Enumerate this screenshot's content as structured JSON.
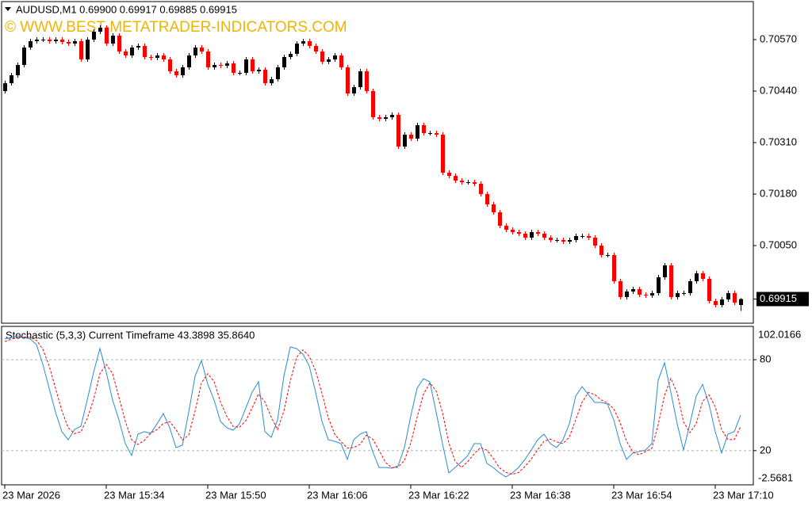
{
  "chart_data": [
    {
      "type": "candlestick",
      "title": "AUDUSD,M1 0.69900 0.69917 0.69885 0.69915",
      "annotation": "© WWW.BEST-METATRADER-INDICATORS.COM",
      "up_color": "#000000",
      "down_color": "#ff0000",
      "xlim": [
        -0.5,
        118
      ],
      "ylim": [
        0.69854,
        0.70666
      ],
      "yticks": [
        {
          "value": 0.7057,
          "label": "0.70570"
        },
        {
          "value": 0.7044,
          "label": "0.70440"
        },
        {
          "value": 0.7031,
          "label": "0.70310"
        },
        {
          "value": 0.7018,
          "label": "0.70180"
        },
        {
          "value": 0.7005,
          "label": "0.70050"
        }
      ],
      "last_price": 0.69915,
      "open": [
        0.7044,
        0.7046,
        0.7048,
        0.70506,
        0.7055,
        0.70566,
        0.7057,
        0.7057,
        0.70566,
        0.7057,
        0.70564,
        0.7056,
        0.70566,
        0.7052,
        0.7057,
        0.7059,
        0.706,
        0.7056,
        0.7058,
        0.7054,
        0.7053,
        0.7055,
        0.70554,
        0.70526,
        0.70524,
        0.7053,
        0.7052,
        0.7049,
        0.7048,
        0.705,
        0.7053,
        0.7055,
        0.7054,
        0.705,
        0.70506,
        0.70504,
        0.7051,
        0.70486,
        0.70486,
        0.7052,
        0.7049,
        0.70494,
        0.7046,
        0.7047,
        0.705,
        0.70526,
        0.70534,
        0.7056,
        0.70566,
        0.70554,
        0.7054,
        0.70514,
        0.7052,
        0.7053,
        0.705,
        0.70434,
        0.7045,
        0.7049,
        0.7044,
        0.70374,
        0.7037,
        0.70374,
        0.7038,
        0.703,
        0.7033,
        0.7032,
        0.70354,
        0.70334,
        0.70334,
        0.7033,
        0.70234,
        0.70226,
        0.70214,
        0.7021,
        0.7021,
        0.70206,
        0.7018,
        0.70154,
        0.70134,
        0.701,
        0.7009,
        0.70084,
        0.7008,
        0.7007,
        0.70084,
        0.7008,
        0.7007,
        0.70064,
        0.70064,
        0.7006,
        0.70064,
        0.70074,
        0.70074,
        0.7007,
        0.7005,
        0.70026,
        0.70026,
        0.6996,
        0.6992,
        0.69934,
        0.6994,
        0.69926,
        0.69924,
        0.6993,
        0.6997,
        0.7,
        0.6992,
        0.6993,
        0.6993,
        0.6996,
        0.6998,
        0.69966,
        0.6991,
        0.699,
        0.69914,
        0.6993,
        0.699
      ],
      "high": [
        0.70466,
        0.70486,
        0.70512,
        0.70556,
        0.70572,
        0.70576,
        0.70576,
        0.70576,
        0.70576,
        0.70576,
        0.7057,
        0.70572,
        0.70572,
        0.70576,
        0.70596,
        0.70606,
        0.70606,
        0.70586,
        0.70586,
        0.70546,
        0.70556,
        0.7056,
        0.7056,
        0.70532,
        0.70536,
        0.70536,
        0.70526,
        0.70496,
        0.70506,
        0.70536,
        0.70556,
        0.70556,
        0.70546,
        0.70512,
        0.70512,
        0.70516,
        0.70516,
        0.70492,
        0.70526,
        0.70526,
        0.705,
        0.705,
        0.70476,
        0.70506,
        0.70532,
        0.7054,
        0.70566,
        0.70572,
        0.70572,
        0.7056,
        0.70546,
        0.70526,
        0.70536,
        0.70536,
        0.70506,
        0.70456,
        0.70496,
        0.70496,
        0.70446,
        0.7038,
        0.7038,
        0.70386,
        0.70386,
        0.70336,
        0.70336,
        0.7036,
        0.7036,
        0.7034,
        0.7034,
        0.70336,
        0.7024,
        0.70232,
        0.7022,
        0.70216,
        0.70216,
        0.70212,
        0.70186,
        0.7016,
        0.7014,
        0.70106,
        0.70096,
        0.7009,
        0.70086,
        0.7009,
        0.7009,
        0.70086,
        0.70076,
        0.7007,
        0.7007,
        0.7007,
        0.7008,
        0.7008,
        0.7008,
        0.70076,
        0.70056,
        0.70032,
        0.70032,
        0.69966,
        0.6994,
        0.69946,
        0.69946,
        0.69932,
        0.69936,
        0.69976,
        0.70006,
        0.70006,
        0.69936,
        0.69936,
        0.69966,
        0.69986,
        0.69986,
        0.69972,
        0.69916,
        0.6992,
        0.69936,
        0.69936,
        0.69917
      ],
      "low": [
        0.70434,
        0.70454,
        0.70474,
        0.705,
        0.70544,
        0.7056,
        0.70564,
        0.7056,
        0.7056,
        0.70558,
        0.70554,
        0.70554,
        0.70514,
        0.70514,
        0.70564,
        0.70584,
        0.70554,
        0.70554,
        0.70534,
        0.70524,
        0.70524,
        0.70544,
        0.7052,
        0.70518,
        0.70518,
        0.70514,
        0.70484,
        0.70474,
        0.70474,
        0.70494,
        0.70524,
        0.70534,
        0.70494,
        0.70494,
        0.70498,
        0.70498,
        0.7048,
        0.7048,
        0.7048,
        0.70484,
        0.70484,
        0.70454,
        0.70454,
        0.70464,
        0.70494,
        0.7052,
        0.70528,
        0.70554,
        0.70548,
        0.70534,
        0.70508,
        0.70508,
        0.70514,
        0.70494,
        0.70428,
        0.70428,
        0.70444,
        0.70434,
        0.70368,
        0.70364,
        0.70364,
        0.70368,
        0.70294,
        0.70294,
        0.70314,
        0.70314,
        0.70328,
        0.70328,
        0.70324,
        0.70228,
        0.7022,
        0.70208,
        0.70204,
        0.70204,
        0.702,
        0.70174,
        0.70148,
        0.70128,
        0.70094,
        0.70084,
        0.70078,
        0.70074,
        0.70064,
        0.70064,
        0.70074,
        0.70064,
        0.70058,
        0.70058,
        0.70054,
        0.70054,
        0.70058,
        0.70068,
        0.70064,
        0.70044,
        0.7002,
        0.7002,
        0.69954,
        0.69914,
        0.69914,
        0.69928,
        0.6992,
        0.69918,
        0.69918,
        0.69924,
        0.69964,
        0.69914,
        0.69914,
        0.69924,
        0.69924,
        0.69954,
        0.6996,
        0.69904,
        0.69894,
        0.69894,
        0.69908,
        0.699,
        0.69885
      ],
      "close": [
        0.7046,
        0.7048,
        0.70506,
        0.7055,
        0.70566,
        0.7057,
        0.7057,
        0.70566,
        0.7057,
        0.70564,
        0.7056,
        0.70566,
        0.7052,
        0.7057,
        0.7059,
        0.706,
        0.7056,
        0.7058,
        0.7054,
        0.7053,
        0.7055,
        0.70554,
        0.70526,
        0.70524,
        0.7053,
        0.7052,
        0.7049,
        0.7048,
        0.705,
        0.7053,
        0.7055,
        0.7054,
        0.705,
        0.70506,
        0.70504,
        0.7051,
        0.70486,
        0.70486,
        0.7052,
        0.7049,
        0.70494,
        0.7046,
        0.7047,
        0.705,
        0.70526,
        0.70534,
        0.7056,
        0.70566,
        0.70554,
        0.7054,
        0.70514,
        0.7052,
        0.7053,
        0.705,
        0.70434,
        0.7045,
        0.7049,
        0.7044,
        0.70374,
        0.7037,
        0.70374,
        0.7038,
        0.703,
        0.7033,
        0.7032,
        0.70354,
        0.70334,
        0.70334,
        0.7033,
        0.70234,
        0.70226,
        0.70214,
        0.7021,
        0.7021,
        0.70206,
        0.7018,
        0.70154,
        0.70134,
        0.701,
        0.7009,
        0.70084,
        0.7008,
        0.7007,
        0.70084,
        0.7008,
        0.7007,
        0.70064,
        0.70064,
        0.7006,
        0.70064,
        0.70074,
        0.70074,
        0.7007,
        0.7005,
        0.70026,
        0.70026,
        0.6996,
        0.6992,
        0.69934,
        0.6994,
        0.69926,
        0.69924,
        0.6993,
        0.6997,
        0.7,
        0.6992,
        0.6993,
        0.6993,
        0.6996,
        0.6998,
        0.69966,
        0.6991,
        0.699,
        0.69914,
        0.6993,
        0.69906,
        0.69915
      ]
    },
    {
      "type": "line",
      "title": "Stochastic (5,3,3) Current Timeframe 43.3898 35.8640",
      "xlim": [
        -0.5,
        118
      ],
      "ylim": [
        -2.5681,
        102.0166
      ],
      "yticks": [
        20,
        80
      ],
      "grid": true,
      "xticks": [
        {
          "value": 0,
          "label": "23 Mar 2026"
        },
        {
          "value": 16,
          "label": "23 Mar 15:34"
        },
        {
          "value": 32,
          "label": "23 Mar 15:50"
        },
        {
          "value": 48,
          "label": "23 Mar 16:06"
        },
        {
          "value": 64,
          "label": "23 Mar 16:22"
        },
        {
          "value": 80,
          "label": "23 Mar 16:38"
        },
        {
          "value": 96,
          "label": "23 Mar 16:54"
        },
        {
          "value": 112,
          "label": "23 Mar 17:10"
        }
      ],
      "series": [
        {
          "color": "#2a8ad6",
          "line_style": "solid",
          "values": [
            93.7,
            94.7,
            95.8,
            94.7,
            93.7,
            90.0,
            76.9,
            61.2,
            45.5,
            32.5,
            27.2,
            34.0,
            36.1,
            53.4,
            71.7,
            87.4,
            71.7,
            53.4,
            40.3,
            24.6,
            16.8,
            30.9,
            32.5,
            31.4,
            37.7,
            44.5,
            35.1,
            22.0,
            23.6,
            45.5,
            69.1,
            79.5,
            63.8,
            53.4,
            39.3,
            35.1,
            33.5,
            37.7,
            48.2,
            58.6,
            65.4,
            32.5,
            28.8,
            40.3,
            69.1,
            88.4,
            87.4,
            83.7,
            75.9,
            58.6,
            39.3,
            27.2,
            26.2,
            24.6,
            14.2,
            27.2,
            30.9,
            32.5,
            19.4,
            8.9,
            8.9,
            8.4,
            10.0,
            22.0,
            42.9,
            61.2,
            67.5,
            65.4,
            45.5,
            24.6,
            5.3,
            8.9,
            12.6,
            16.8,
            24.6,
            24.6,
            11.6,
            8.9,
            5.3,
            2.7,
            5.3,
            8.9,
            14.2,
            20.4,
            27.2,
            30.9,
            24.6,
            22.0,
            27.2,
            37.7,
            56.0,
            62.3,
            57.0,
            51.8,
            51.8,
            50.8,
            40.3,
            24.6,
            14.2,
            18.4,
            19.4,
            20.4,
            24.6,
            66.5,
            78.0,
            58.6,
            37.7,
            20.4,
            37.7,
            56.0,
            63.8,
            50.8,
            32.5,
            18.4,
            30.9,
            32.5,
            43.3898
          ]
        },
        {
          "color": "#ff0000",
          "line_style": "dashed",
          "values": [
            92.0,
            93.5,
            94.7,
            95.1,
            94.7,
            92.8,
            86.9,
            76.0,
            61.2,
            46.4,
            35.1,
            31.2,
            32.4,
            41.2,
            53.7,
            70.8,
            76.9,
            70.8,
            55.1,
            39.4,
            27.2,
            24.1,
            26.7,
            31.6,
            33.9,
            37.9,
            39.1,
            33.9,
            26.9,
            30.4,
            46.1,
            64.7,
            70.8,
            65.6,
            52.2,
            42.6,
            36.0,
            35.4,
            39.8,
            48.2,
            57.4,
            52.2,
            42.2,
            33.9,
            46.1,
            65.9,
            81.6,
            86.5,
            82.3,
            72.7,
            57.9,
            41.7,
            30.9,
            26.0,
            21.7,
            22.0,
            24.1,
            30.2,
            27.6,
            20.3,
            12.4,
            8.7,
            9.1,
            13.5,
            25.0,
            42.0,
            57.2,
            64.7,
            59.5,
            45.2,
            25.1,
            12.9,
            8.9,
            12.8,
            18.0,
            22.0,
            20.3,
            15.0,
            8.6,
            5.6,
            4.4,
            5.6,
            9.5,
            14.5,
            20.6,
            26.2,
            27.6,
            25.8,
            24.6,
            29.0,
            40.3,
            52.0,
            58.4,
            57.0,
            53.5,
            51.5,
            47.6,
            38.6,
            26.4,
            19.1,
            17.3,
            19.4,
            21.5,
            37.2,
            56.4,
            67.7,
            58.1,
            38.9,
            31.9,
            38.0,
            52.5,
            56.9,
            49.0,
            33.9,
            27.3,
            27.3,
            35.864
          ]
        }
      ]
    }
  ]
}
